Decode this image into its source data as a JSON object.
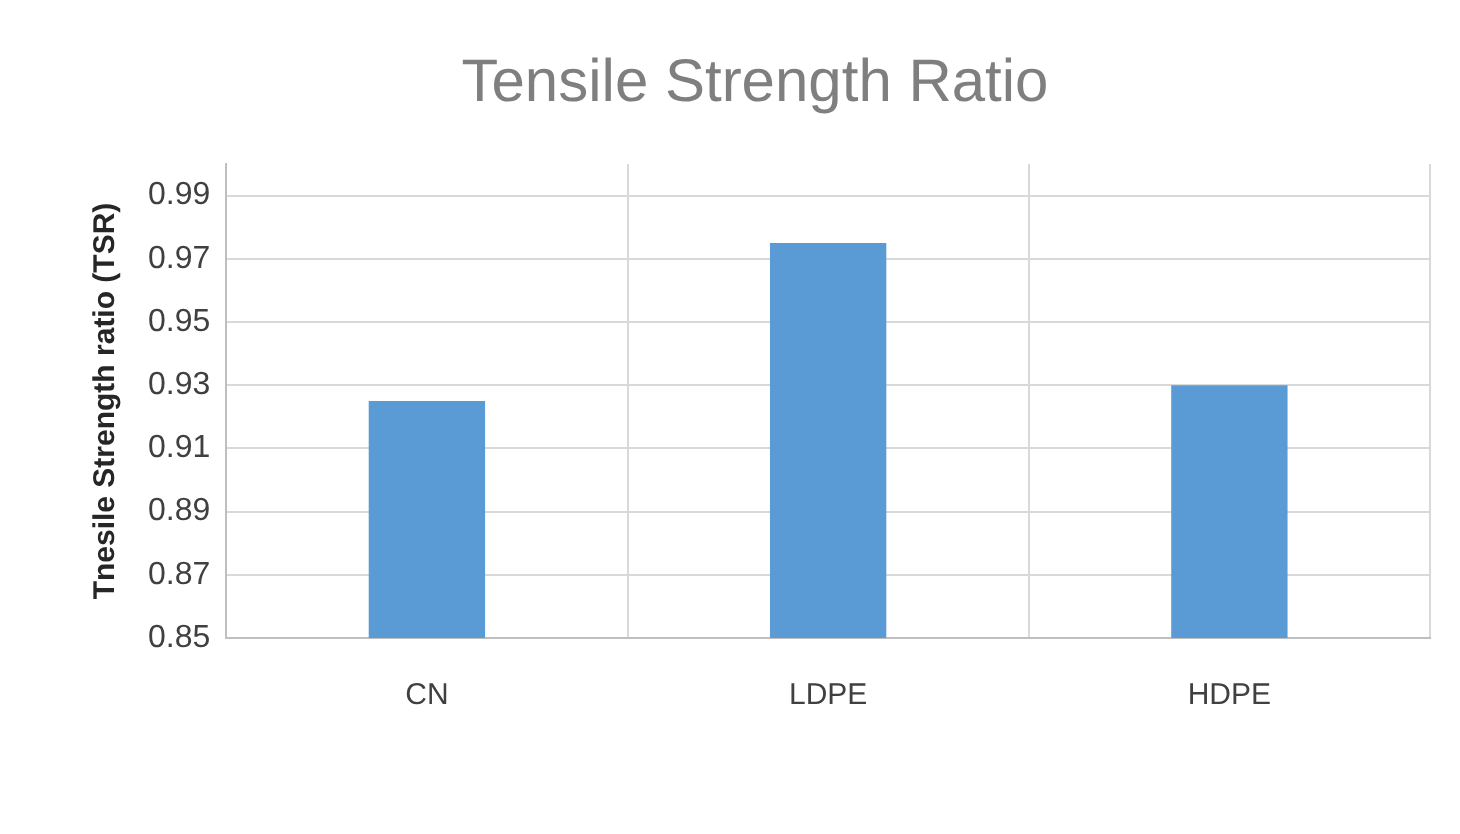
{
  "chart_data": {
    "type": "bar",
    "title": "Tensile Strength Ratio",
    "ylabel": "Tnesile Strength ratio (TSR)",
    "categories": [
      "CN",
      "LDPE",
      "HDPE"
    ],
    "values": [
      0.925,
      0.975,
      0.93
    ],
    "color": "#5b9bd5",
    "ylim": [
      0.85,
      1.0
    ],
    "yticks": [
      0.85,
      0.87,
      0.89,
      0.91,
      0.93,
      0.95,
      0.97,
      0.99
    ],
    "grid": true,
    "legend": false
  }
}
